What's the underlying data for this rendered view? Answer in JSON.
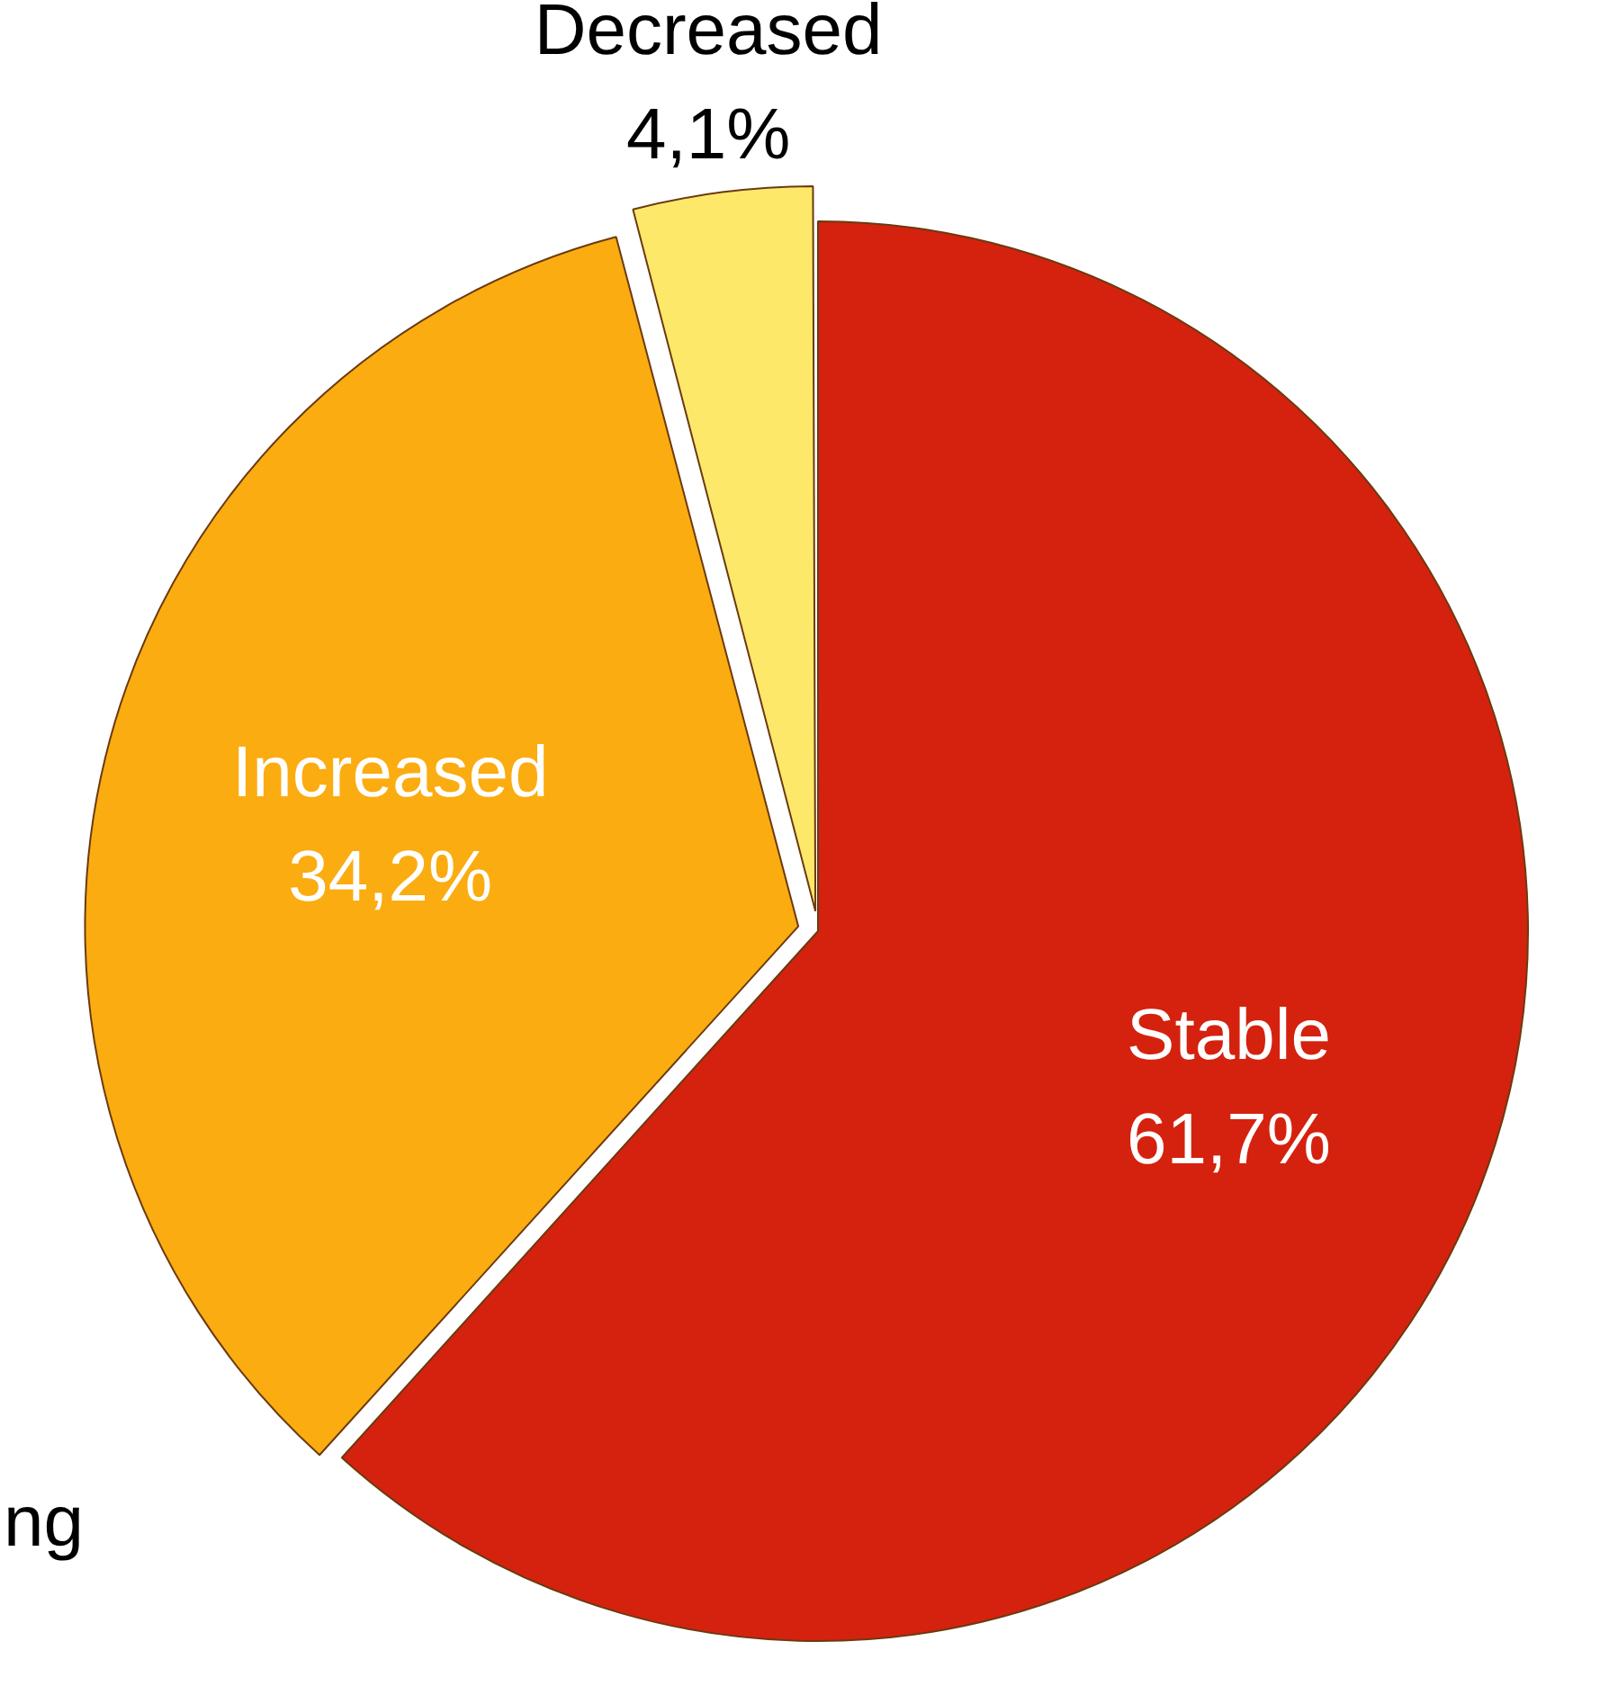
{
  "chart_data": {
    "type": "pie",
    "categories": [
      "Stable",
      "Increased",
      "Decreased"
    ],
    "values": [
      61.7,
      34.2,
      4.1
    ],
    "colors": [
      "#d4220e",
      "#fbac10",
      "#fde86a"
    ],
    "value_labels": [
      "61,7%",
      "34,2%",
      "4,1%"
    ],
    "annotations": [
      "ng"
    ],
    "legend": false
  }
}
